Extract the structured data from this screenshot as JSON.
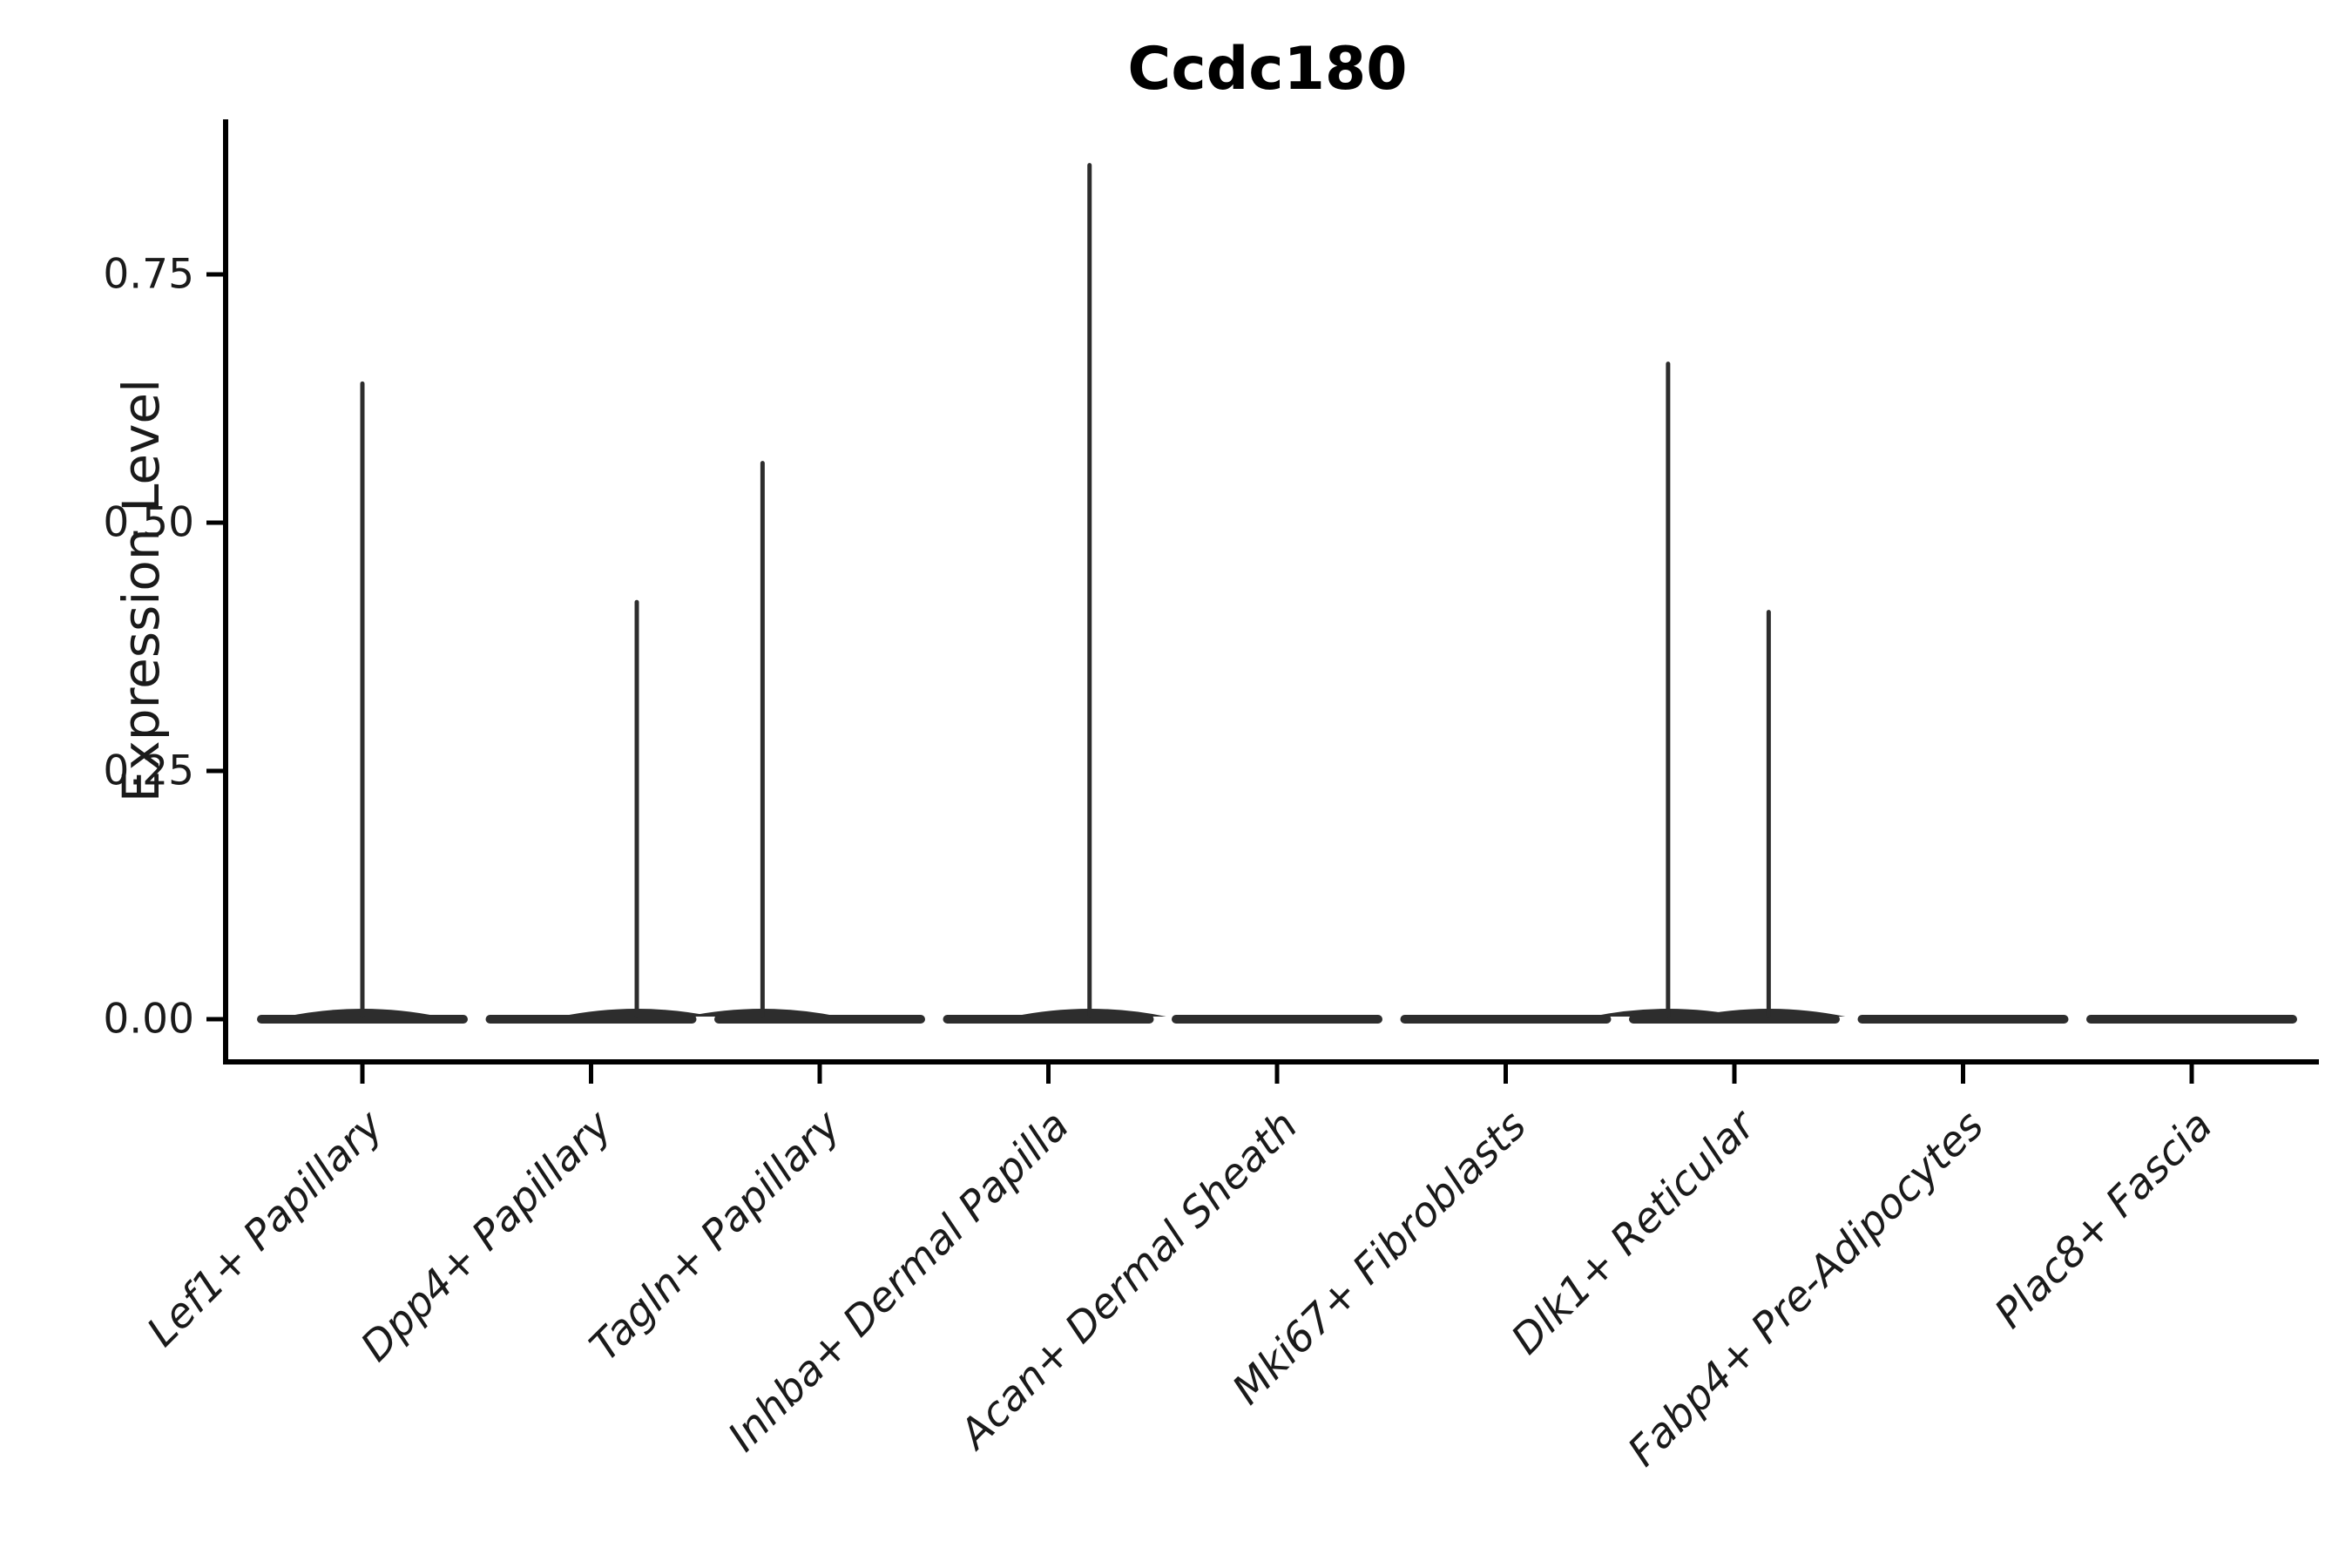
{
  "title": "Ccdc180",
  "ylabel": "Expression Level",
  "colors": {
    "violin": "#2d2d2d",
    "axis": "#000000",
    "text": "#1a1a1a",
    "background": "#ffffff"
  },
  "chart_data": {
    "type": "violin",
    "title": "Ccdc180",
    "xlabel": "",
    "ylabel": "Expression Level",
    "ylim": [
      -0.04,
      0.91
    ],
    "grid": false,
    "legend": null,
    "yticks": [
      {
        "value": 0.0,
        "label": "0.00"
      },
      {
        "value": 0.25,
        "label": "0.25"
      },
      {
        "value": 0.5,
        "label": "0.50"
      },
      {
        "value": 0.75,
        "label": "0.75"
      }
    ],
    "categories": [
      "Lef1+ Papillary",
      "Dpp4+ Papillary",
      "Tagln+ Papillary",
      "Inhba+ Dermal Papilla",
      "Acan+ Dermal Sheath",
      "Mki67+ Fibroblasts",
      "Dlk1+ Reticular",
      "Fabp4+ Pre-Adipocytes",
      "Plac8+ Fascia"
    ],
    "violins": [
      {
        "category": "Lef1+ Papillary",
        "bulk_value": 0,
        "max_value": 0.64,
        "spikes": [
          {
            "value": 0.64,
            "offset": 0.0
          }
        ]
      },
      {
        "category": "Dpp4+ Papillary",
        "bulk_value": 0,
        "max_value": 0.42,
        "spikes": [
          {
            "value": 0.42,
            "offset": 0.2
          }
        ]
      },
      {
        "category": "Tagln+ Papillary",
        "bulk_value": 0,
        "max_value": 0.56,
        "spikes": [
          {
            "value": 0.56,
            "offset": -0.25
          }
        ]
      },
      {
        "category": "Inhba+ Dermal Papilla",
        "bulk_value": 0,
        "max_value": 0.86,
        "spikes": [
          {
            "value": 0.86,
            "offset": 0.18
          }
        ]
      },
      {
        "category": "Acan+ Dermal Sheath",
        "bulk_value": 0,
        "max_value": 0,
        "spikes": []
      },
      {
        "category": "Mki67+ Fibroblasts",
        "bulk_value": 0,
        "max_value": 0,
        "spikes": []
      },
      {
        "category": "Dlk1+ Reticular",
        "bulk_value": 0,
        "max_value": 0.66,
        "spikes": [
          {
            "value": 0.66,
            "offset": -0.29
          },
          {
            "value": 0.41,
            "offset": 0.15
          }
        ]
      },
      {
        "category": "Fabp4+ Pre-Adipocytes",
        "bulk_value": 0,
        "max_value": 0,
        "spikes": []
      },
      {
        "category": "Plac8+ Fascia",
        "bulk_value": 0,
        "max_value": 0,
        "spikes": []
      }
    ]
  }
}
